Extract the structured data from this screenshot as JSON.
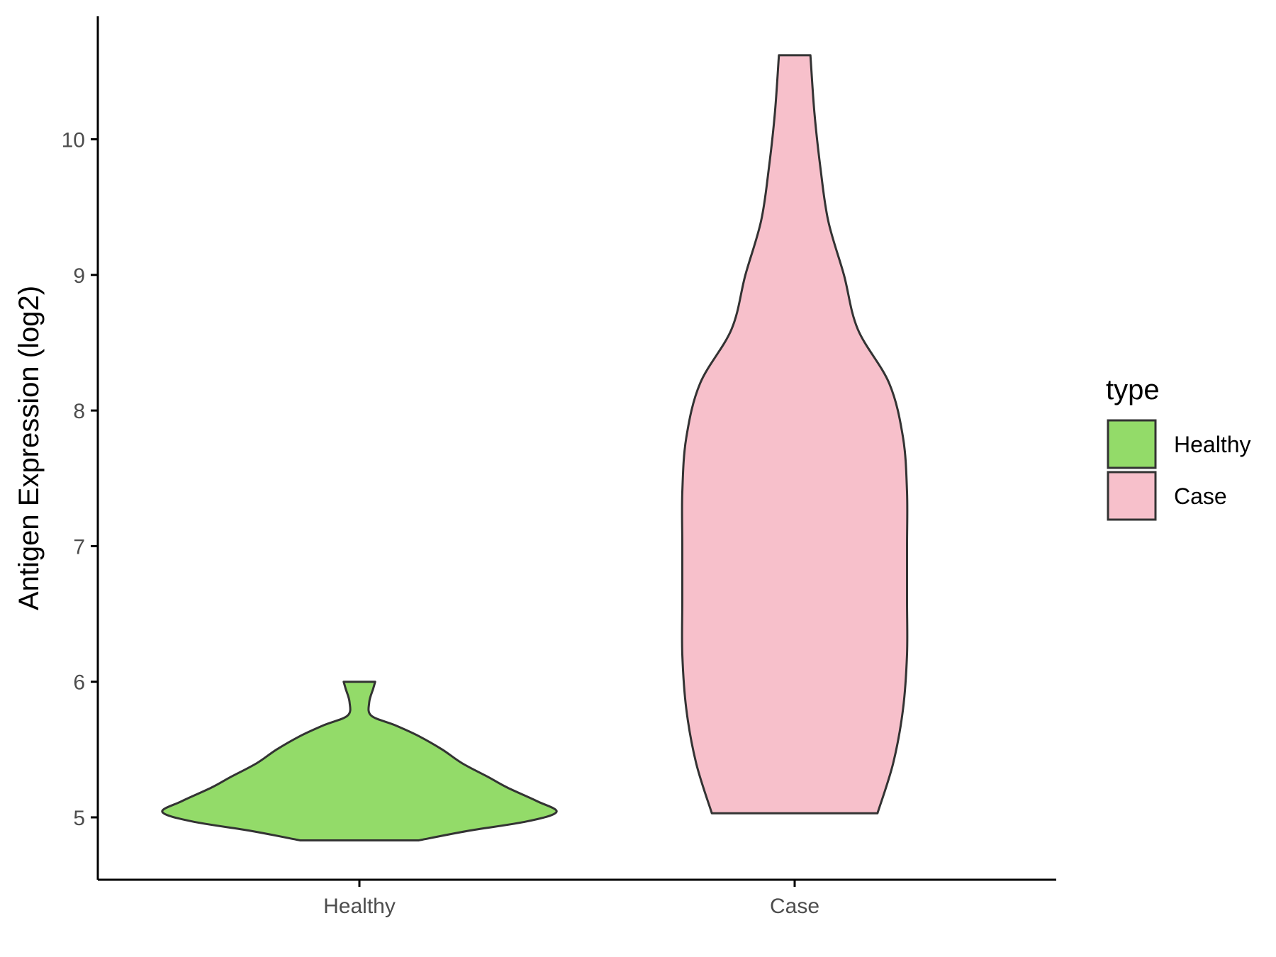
{
  "chart_data": {
    "type": "violin",
    "ylabel": "Antigen Expression (log2)",
    "xlabel": "",
    "ylim": [
      4.55,
      10.9
    ],
    "yticks": [
      5,
      6,
      7,
      8,
      9,
      10
    ],
    "categories": [
      "Healthy",
      "Case"
    ],
    "grid": false,
    "legend": {
      "title": "type",
      "position": "right",
      "entries": [
        {
          "label": "Healthy",
          "color": "#93DB69"
        },
        {
          "label": "Case",
          "color": "#F7C0CB"
        }
      ]
    },
    "series": [
      {
        "category": "Healthy",
        "color": "#93DB69",
        "min": 4.83,
        "max": 6.0,
        "density_profile": [
          [
            4.83,
            0.3
          ],
          [
            4.9,
            0.55
          ],
          [
            4.97,
            0.85
          ],
          [
            5.04,
            1.0
          ],
          [
            5.12,
            0.9
          ],
          [
            5.22,
            0.75
          ],
          [
            5.3,
            0.65
          ],
          [
            5.4,
            0.52
          ],
          [
            5.5,
            0.42
          ],
          [
            5.6,
            0.3
          ],
          [
            5.68,
            0.18
          ],
          [
            5.75,
            0.06
          ],
          [
            5.85,
            0.05
          ],
          [
            5.95,
            0.07
          ],
          [
            6.0,
            0.08
          ]
        ]
      },
      {
        "category": "Case",
        "color": "#F7C0CB",
        "min": 5.03,
        "max": 10.62,
        "density_profile": [
          [
            5.03,
            0.42
          ],
          [
            5.4,
            0.5
          ],
          [
            5.8,
            0.55
          ],
          [
            6.2,
            0.57
          ],
          [
            6.6,
            0.57
          ],
          [
            7.0,
            0.57
          ],
          [
            7.4,
            0.57
          ],
          [
            7.8,
            0.55
          ],
          [
            8.2,
            0.48
          ],
          [
            8.6,
            0.32
          ],
          [
            9.0,
            0.25
          ],
          [
            9.4,
            0.17
          ],
          [
            9.8,
            0.13
          ],
          [
            10.2,
            0.1
          ],
          [
            10.62,
            0.08
          ]
        ]
      }
    ]
  }
}
